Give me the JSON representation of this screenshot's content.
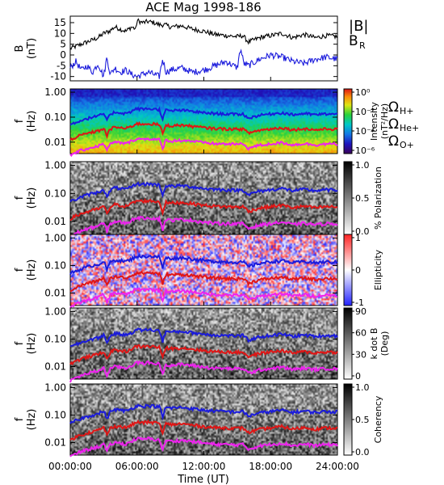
{
  "chart_data": {
    "type": "spectrogram",
    "title": "ACE Mag 1998-186",
    "xlabel": "Time (UT)",
    "x_ticks": [
      "00:00:00",
      "06:00:00",
      "12:00:00",
      "18:00:00",
      "24:00:00"
    ],
    "x_range_hours": [
      0,
      24
    ],
    "panels": [
      {
        "kind": "line",
        "ylabel_1": "B",
        "ylabel_2": "(nT)",
        "y_ticks": [
          "15",
          "10",
          "5",
          "0",
          "-5",
          "-10"
        ],
        "ylim": [
          -12,
          18
        ],
        "legend": [
          {
            "label": "|B|",
            "color": "#000000"
          },
          {
            "label": "B",
            "sub": "R",
            "color": "#1a1adc"
          }
        ],
        "series": [
          {
            "color": "#000000",
            "x": [
              0,
              1,
              2,
              2.5,
              3,
              3.5,
              4,
              4.5,
              5,
              5.5,
              5.9,
              6.0,
              6.5,
              7,
              7.5,
              8,
              8.5,
              9,
              10,
              11,
              12,
              13,
              14,
              15,
              15.5,
              16,
              17,
              18,
              19,
              20,
              21,
              22,
              23,
              24
            ],
            "y": [
              3,
              5,
              7,
              8,
              10,
              11,
              13,
              12,
              11,
              13,
              12,
              16,
              15,
              15.5,
              15,
              14,
              14,
              13,
              13.5,
              12,
              11,
              9.5,
              9,
              8.5,
              9,
              6,
              8,
              9,
              10,
              8,
              9.5,
              8,
              9,
              8.5
            ]
          },
          {
            "color": "#1a1adc",
            "x": [
              0,
              0.5,
              1,
              1.5,
              2,
              2.5,
              3,
              3.3,
              3.6,
              4,
              4.5,
              5,
              5.5,
              6,
              6.5,
              7,
              7.5,
              8,
              8.3,
              8.6,
              9,
              10,
              11,
              12,
              13,
              14,
              15,
              15.3,
              15.6,
              16,
              17,
              18,
              19,
              20,
              21,
              22,
              23,
              24
            ],
            "y": [
              -6,
              -3,
              -7,
              -5,
              -8,
              -4,
              -10,
              -1,
              -9,
              -6,
              -8,
              -7,
              -9,
              -10,
              -9,
              -8,
              -9,
              -10,
              -2,
              -8,
              -7,
              -6,
              -8,
              -7,
              -5,
              -3,
              -6,
              3,
              -4,
              -5,
              -2,
              0,
              -1,
              -3,
              -4,
              -2,
              -1,
              -2
            ]
          }
        ]
      },
      {
        "kind": "spectrogram",
        "palette": "rainbow",
        "ylabel_1": "f",
        "ylabel_2": "(Hz)",
        "y_ticks": [
          "1.00",
          "0.10",
          "0.01"
        ],
        "colorbar_label_1": "Intensity",
        "colorbar_label_2": "(nT²/Hz)",
        "colorbar_ticks": [
          "10⁰",
          "10⁻²",
          "10⁻⁴",
          "10⁻⁶"
        ],
        "gyro_legend": [
          {
            "label": "Ω",
            "sub": "H+",
            "color": "#1a1adc"
          },
          {
            "label": "Ω",
            "sub": "He+",
            "color": "#e01515"
          },
          {
            "label": "Ω",
            "sub": "O+",
            "color": "#ee22ee"
          }
        ]
      },
      {
        "kind": "spectrogram",
        "palette": "gray",
        "ylabel_1": "f",
        "ylabel_2": "(Hz)",
        "y_ticks": [
          "1.00",
          "0.10",
          "0.01"
        ],
        "colorbar_label_1": "% Polarization",
        "colorbar_label_2": "",
        "colorbar_ticks": [
          "1.0",
          "0.5",
          "0.0"
        ]
      },
      {
        "kind": "spectrogram",
        "palette": "bwr",
        "ylabel_1": "f",
        "ylabel_2": "(Hz)",
        "y_ticks": [
          "1.00",
          "0.10",
          "0.01"
        ],
        "colorbar_label_1": "Ellipticity",
        "colorbar_label_2": "",
        "colorbar_ticks": [
          "1",
          "0",
          "-1"
        ]
      },
      {
        "kind": "spectrogram",
        "palette": "gray",
        "ylabel_1": "f",
        "ylabel_2": "(Hz)",
        "y_ticks": [
          "1.00",
          "0.10",
          "0.01"
        ],
        "colorbar_label_1": "k dot B",
        "colorbar_label_2": "(Deg)",
        "colorbar_ticks": [
          "90",
          "60",
          "30",
          "0"
        ]
      },
      {
        "kind": "spectrogram",
        "palette": "gray",
        "ylabel_1": "f",
        "ylabel_2": "(Hz)",
        "y_ticks": [
          "1.00",
          "0.10",
          "0.01"
        ],
        "colorbar_label_1": "Coherency",
        "colorbar_label_2": "",
        "colorbar_ticks": [
          "1.0",
          "0.5",
          "0.0"
        ]
      }
    ],
    "gyrofrequency_lines": {
      "x": [
        0,
        1,
        2,
        2.5,
        3,
        3.3,
        3.6,
        4,
        4.5,
        5,
        5.5,
        6,
        6.5,
        7,
        7.5,
        8,
        8.3,
        8.6,
        9,
        10,
        11,
        12,
        13,
        14,
        15,
        15.5,
        16,
        17,
        18,
        19,
        20,
        21,
        22,
        23,
        24
      ],
      "H+": [
        0.05,
        0.075,
        0.1,
        0.11,
        0.14,
        0.07,
        0.13,
        0.16,
        0.15,
        0.14,
        0.17,
        0.22,
        0.21,
        0.22,
        0.21,
        0.2,
        0.08,
        0.19,
        0.18,
        0.19,
        0.17,
        0.15,
        0.14,
        0.135,
        0.13,
        0.135,
        0.09,
        0.12,
        0.135,
        0.15,
        0.125,
        0.14,
        0.125,
        0.135,
        0.13
      ],
      "He+": [
        0.0125,
        0.019,
        0.025,
        0.028,
        0.035,
        0.018,
        0.033,
        0.04,
        0.038,
        0.035,
        0.043,
        0.055,
        0.053,
        0.055,
        0.053,
        0.05,
        0.02,
        0.048,
        0.045,
        0.048,
        0.043,
        0.038,
        0.035,
        0.034,
        0.033,
        0.034,
        0.023,
        0.03,
        0.034,
        0.038,
        0.031,
        0.035,
        0.031,
        0.034,
        0.033
      ],
      "O+": [
        0.003,
        0.0047,
        0.0062,
        0.007,
        0.0087,
        0.0045,
        0.0083,
        0.01,
        0.0095,
        0.0087,
        0.011,
        0.014,
        0.013,
        0.014,
        0.013,
        0.0125,
        0.005,
        0.012,
        0.011,
        0.012,
        0.011,
        0.0095,
        0.0087,
        0.0085,
        0.0083,
        0.0085,
        0.0057,
        0.0075,
        0.0085,
        0.0095,
        0.0078,
        0.0087,
        0.0078,
        0.0085,
        0.0083
      ]
    },
    "grid": false
  }
}
